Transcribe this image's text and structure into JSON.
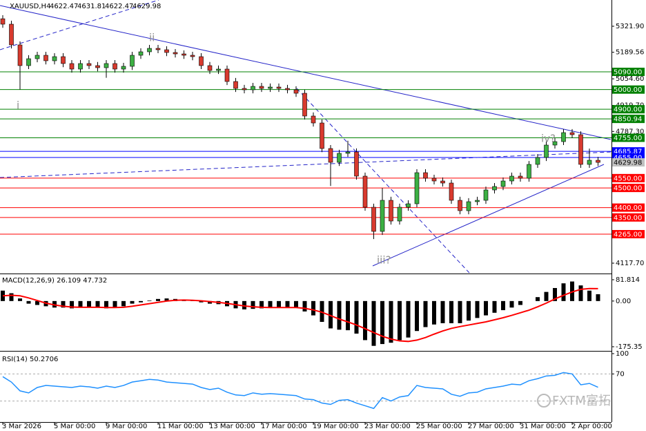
{
  "chart_data": [
    {
      "type": "candlestick",
      "title": "XAUUSD,H4",
      "ohlc": [
        4622.47,
        4631.81,
        4622.47,
        4629.98
      ],
      "up_color": "#3cb043",
      "down_color": "#d83a2e",
      "ylim": [
        4068.5,
        5455.3
      ],
      "yticks": [
        {
          "value": 5321.9,
          "label": "5321.90"
        },
        {
          "value": 5189.56,
          "label": "5189.56"
        },
        {
          "value": 5054.6,
          "label": "5054.60"
        },
        {
          "value": 4919.7,
          "label": "4919.70"
        },
        {
          "value": 4787.3,
          "label": "4787.30"
        },
        {
          "value": 4117.7,
          "label": "4117.70"
        }
      ],
      "categories": [
        "3 Mar 2026",
        null,
        null,
        null,
        null,
        null,
        "5 Mar 00:00",
        null,
        null,
        null,
        null,
        null,
        "9 Mar 00:00",
        null,
        null,
        null,
        null,
        null,
        "11 Mar 00:00",
        null,
        null,
        null,
        null,
        null,
        "13 Mar 00:00",
        null,
        null,
        null,
        null,
        null,
        "17 Mar 00:00",
        null,
        null,
        null,
        null,
        null,
        "19 Mar 00:00",
        null,
        null,
        null,
        null,
        null,
        "23 Mar 00:00",
        null,
        null,
        null,
        null,
        null,
        "25 Mar 00:00",
        null,
        null,
        null,
        null,
        null,
        "27 Mar 00:00",
        null,
        null,
        null,
        null,
        null,
        "31 Mar 00:00",
        null,
        null,
        null,
        null,
        null,
        "2 Apr 00:00",
        null,
        null,
        null
      ],
      "open": [
        5360,
        5332.4,
        5227.1,
        5121.8,
        5156.9,
        5174.4,
        5146.4,
        5167.4,
        5132.3,
        5104.2,
        5132.3,
        5121.8,
        5111.2,
        5132.3,
        5104.2,
        5118.2,
        5174.4,
        5192.0,
        5209.5,
        5202.5,
        5188.5,
        5181.4,
        5174.4,
        5167.4,
        5121.8,
        5097.2,
        5104.2,
        5041.0,
        5005.9,
        4998.9,
        5016.4,
        5005.9,
        5012.9,
        5005.9,
        4998.9,
        4981.3,
        4865.5,
        4830.3,
        4700.4,
        4630.2,
        4675.9,
        4682.9,
        4560.0,
        4402.0,
        4279.1,
        4437.1,
        4331.8,
        4402.0,
        4419.6,
        4577.6,
        4549.5,
        4535.4,
        4524.9,
        4437.1,
        4384.4,
        4430.1,
        4437.1,
        4489.8,
        4507.3,
        4535.4,
        4560.0,
        4549.5,
        4619.7,
        4654.8,
        4718.0,
        4735.5,
        4781.2,
        4770.7,
        4619.7,
        4640.8
      ],
      "high": [
        5378,
        5350,
        5245,
        5175,
        5192,
        5192,
        5185,
        5185,
        5150,
        5150,
        5150,
        5140,
        5150,
        5150,
        5136,
        5192,
        5210,
        5227,
        5227,
        5220,
        5206,
        5199,
        5192,
        5185,
        5140,
        5122,
        5122,
        5059,
        5024,
        5034,
        5034,
        5031,
        5031,
        5024,
        5017,
        4999,
        4884,
        4848,
        4718,
        4694,
        4740,
        4701,
        4578,
        4420,
        4500,
        4455,
        4420,
        4437,
        4595,
        4595,
        4567,
        4553,
        4542,
        4455,
        4448,
        4455,
        4507,
        4525,
        4553,
        4578,
        4578,
        4637,
        4672,
        4736,
        4753,
        4799,
        4799,
        4788,
        4700,
        4658
      ],
      "low": [
        5314,
        5209,
        5000,
        5104,
        5139,
        5128,
        5128,
        5114,
        5086,
        5086,
        5104,
        5093,
        5060,
        5086,
        5086,
        5100,
        5156,
        5174,
        5185,
        5170,
        5163,
        5156,
        5149,
        5104,
        5079,
        5079,
        5023,
        4988,
        4981,
        4981,
        4988,
        4988,
        4988,
        4981,
        4963,
        4848,
        4812,
        4682,
        4510,
        4612,
        4658,
        4542,
        4384,
        4240,
        4261,
        4314,
        4314,
        4384,
        4402,
        4532,
        4518,
        4507,
        4419,
        4366,
        4366,
        4412,
        4419,
        4472,
        4489,
        4518,
        4532,
        4532,
        4602,
        4637,
        4700,
        4718,
        4753,
        4602,
        4602,
        4612
      ],
      "close": [
        5332.4,
        5227.1,
        5121.8,
        5156.9,
        5174.4,
        5146.4,
        5167.4,
        5132.3,
        5104.2,
        5132.3,
        5121.8,
        5111.2,
        5132.3,
        5104.2,
        5118.2,
        5174.4,
        5192.0,
        5209.5,
        5202.5,
        5188.5,
        5181.4,
        5174.4,
        5167.4,
        5121.8,
        5097.2,
        5104.2,
        5041.0,
        5005.9,
        4998.9,
        5016.4,
        5005.9,
        5012.9,
        5005.9,
        4998.9,
        4981.3,
        4865.5,
        4830.3,
        4700.4,
        4630.2,
        4675.9,
        4682.9,
        4560.0,
        4402.0,
        4279.1,
        4437.1,
        4331.8,
        4402.0,
        4419.6,
        4577.6,
        4549.5,
        4535.4,
        4524.9,
        4437.1,
        4384.4,
        4430.1,
        4437.1,
        4489.8,
        4507.3,
        4535.4,
        4560.0,
        4549.5,
        4619.7,
        4654.8,
        4718.0,
        4735.5,
        4781.2,
        4770.7,
        4619.7,
        4640.8,
        4629.98
      ],
      "levels": [
        {
          "value": 5090,
          "label": "5090.00",
          "color": "#008000"
        },
        {
          "value": 5000,
          "label": "5000.00",
          "color": "#008000"
        },
        {
          "value": 4900,
          "label": "4900.00",
          "color": "#008000"
        },
        {
          "value": 4850.94,
          "label": "4850.94",
          "color": "#008000"
        },
        {
          "value": 4755,
          "label": "4755.00",
          "color": "#008000"
        },
        {
          "value": 4685.87,
          "label": "4685.87",
          "color": "#0000ff"
        },
        {
          "value": 4655,
          "label": "4655.00",
          "color": "#0000ff"
        },
        {
          "value": 4550,
          "label": "4550.00",
          "color": "#ff0000"
        },
        {
          "value": 4500,
          "label": "4500.00",
          "color": "#ff0000"
        },
        {
          "value": 4400,
          "label": "4400.00",
          "color": "#ff0000"
        },
        {
          "value": 4350,
          "label": "4350.00",
          "color": "#ff0000"
        },
        {
          "value": 4265,
          "label": "4265.00",
          "color": "#ff0000"
        }
      ],
      "annotations": [
        "i",
        "ii",
        "iii?",
        "iv?"
      ]
    },
    {
      "type": "macd",
      "title": "MACD(12,26,9) 26.109 47.732",
      "ylim": [
        -186,
        103
      ],
      "yticks": [
        81.814,
        {
          "value": 0,
          "label": "0.00"
        },
        -175.35
      ],
      "histogram_color": "#000000",
      "signal_color": "#ff0000",
      "histogram_values": [
        40,
        30,
        10,
        -10,
        -15,
        -20,
        -25,
        -25,
        -28,
        -25,
        -22,
        -25,
        -28,
        -25,
        -20,
        -10,
        -5,
        2,
        8,
        10,
        8,
        5,
        2,
        -5,
        -10,
        -12,
        -20,
        -28,
        -32,
        -30,
        -28,
        -27,
        -26,
        -25,
        -26,
        -40,
        -55,
        -80,
        -105,
        -110,
        -112,
        -125,
        -150,
        -172,
        -165,
        -160,
        -150,
        -140,
        -115,
        -100,
        -90,
        -85,
        -85,
        -85,
        -75,
        -65,
        -55,
        -45,
        -35,
        -25,
        -15,
        0,
        15,
        35,
        50,
        68,
        75,
        60,
        40,
        26.109
      ],
      "signal_values": [
        20,
        22,
        20,
        12,
        2,
        -8,
        -15,
        -20,
        -23,
        -24,
        -24,
        -24,
        -25,
        -25,
        -24,
        -20,
        -15,
        -10,
        -5,
        0,
        3,
        4,
        3,
        1,
        -2,
        -5,
        -9,
        -14,
        -19,
        -22,
        -24,
        -25,
        -25,
        -25,
        -25,
        -28,
        -34,
        -43,
        -56,
        -69,
        -80,
        -92,
        -106,
        -121,
        -135,
        -146,
        -153,
        -155,
        -150,
        -140,
        -127,
        -115,
        -105,
        -98,
        -92,
        -86,
        -80,
        -72,
        -64,
        -55,
        -45,
        -35,
        -22,
        -8,
        8,
        22,
        35,
        45,
        48,
        47.732
      ]
    },
    {
      "type": "rsi",
      "title": "RSI(14) 50.2706",
      "ylim": [
        0,
        100
      ],
      "yticks": [
        100,
        70
      ],
      "levels": [
        70,
        30
      ],
      "color": "#1e90ff",
      "values": [
        66,
        58,
        45,
        42,
        50,
        53,
        52,
        51,
        50,
        52,
        51,
        49,
        52,
        50,
        53,
        58,
        60,
        62,
        61,
        58,
        57,
        56,
        55,
        50,
        47,
        49,
        43,
        39,
        38,
        42,
        40,
        41,
        40,
        39,
        38,
        33,
        32,
        27,
        25,
        31,
        32,
        27,
        23,
        19,
        35,
        30,
        36,
        38,
        53,
        50,
        49,
        48,
        40,
        37,
        42,
        43,
        48,
        50,
        52,
        55,
        54,
        60,
        63,
        67,
        68,
        72,
        70,
        54,
        56,
        50.2706
      ],
      "watermark": "FXTM富拓"
    }
  ]
}
